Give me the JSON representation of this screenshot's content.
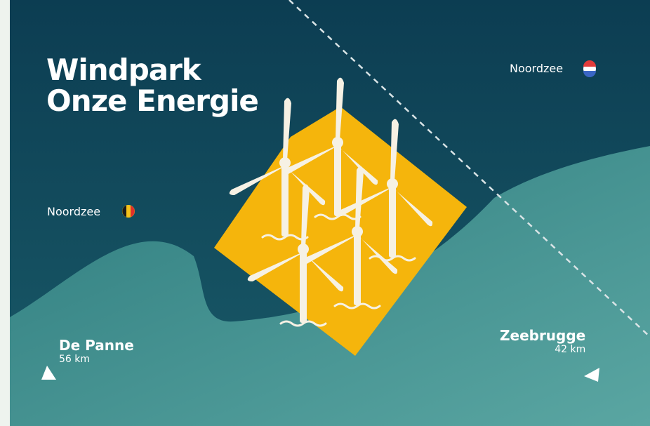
{
  "title": {
    "line1": "Windpark",
    "line2": "Onze Energie"
  },
  "regions": {
    "nl": {
      "label": "Noordzee",
      "flag": "netherlands-flag-icon"
    },
    "be": {
      "label": "Noordzee",
      "flag": "belgium-flag-icon"
    }
  },
  "ports": {
    "de_panne": {
      "name": "De Panne",
      "distance": "56 km"
    },
    "zeebrugge": {
      "name": "Zeebrugge",
      "distance": "42 km"
    }
  },
  "colors": {
    "sea_dark": "#0f4458",
    "sea_light": "#4a9494",
    "zone": "#f5b50c",
    "turbine": "#f6f1e4",
    "border_line": "#d9e4e6"
  }
}
